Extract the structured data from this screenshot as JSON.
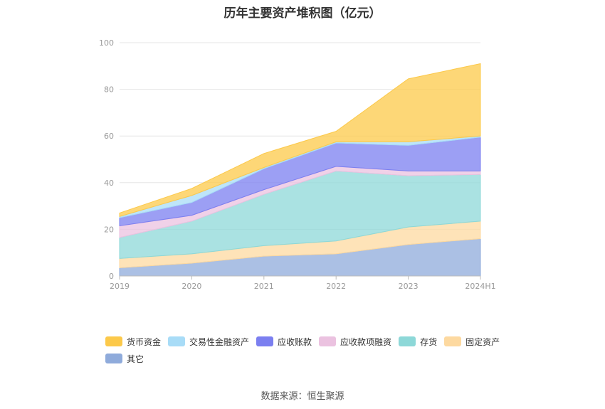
{
  "title": "历年主要资产堆积图（亿元）",
  "source": "数据来源：恒生聚源",
  "chart_data": {
    "type": "area",
    "stacked": true,
    "categories": [
      "2019",
      "2020",
      "2021",
      "2022",
      "2023",
      "2024H1"
    ],
    "ylim": [
      0,
      100
    ],
    "yticks": [
      0,
      20,
      40,
      60,
      80,
      100
    ],
    "grid": true,
    "legend_position": "bottom",
    "series": [
      {
        "name": "其它",
        "color": "#8fabdb",
        "values": [
          3.5,
          5.5,
          8.5,
          9.5,
          13.5,
          16
        ]
      },
      {
        "name": "固定资产",
        "color": "#fdd9a0",
        "values": [
          4,
          4,
          4.5,
          5.5,
          7.5,
          7.5
        ]
      },
      {
        "name": "存货",
        "color": "#8dd8d8",
        "values": [
          9,
          14,
          22,
          30,
          22,
          20
        ]
      },
      {
        "name": "应收款项融资",
        "color": "#ebc2e0",
        "values": [
          5,
          2.5,
          2,
          2,
          2,
          1.5
        ]
      },
      {
        "name": "应收账款",
        "color": "#7b7ff0",
        "values": [
          3.5,
          5.5,
          9,
          10,
          11,
          14.5
        ]
      },
      {
        "name": "交易性金融资产",
        "color": "#a8dcf7",
        "values": [
          0.5,
          3,
          0.5,
          0.5,
          1.5,
          0.5
        ]
      },
      {
        "name": "货币资金",
        "color": "#fcc94a",
        "values": [
          1.5,
          3,
          6,
          4.5,
          27,
          31
        ]
      }
    ],
    "legend_order": [
      "货币资金",
      "交易性金融资产",
      "应收账款",
      "应收款项融资",
      "存货",
      "固定资产",
      "其它"
    ]
  }
}
